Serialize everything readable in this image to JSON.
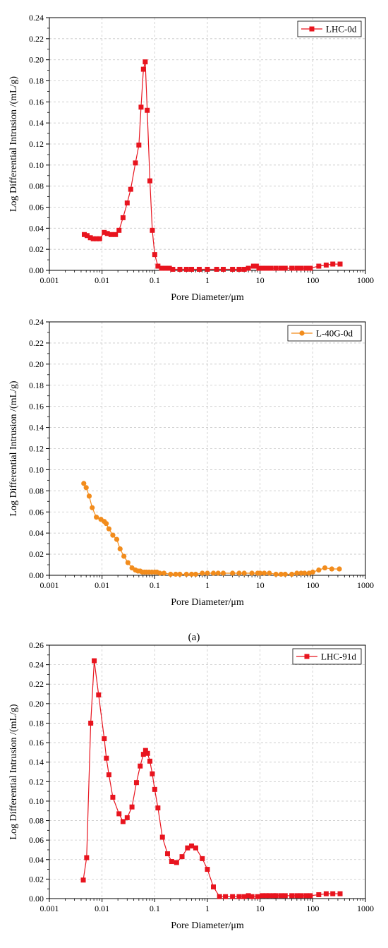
{
  "caption": "(a)",
  "chart_data": [
    {
      "type": "line",
      "xlabel": "Pore Diameter/μm",
      "ylabel": "Log Differential Intrusion /(mL/g)",
      "xscale": "log",
      "xlim": [
        0.001,
        1000
      ],
      "ylim": [
        0,
        0.24
      ],
      "xticks": [
        "0.001",
        "0.01",
        "0.1",
        "1",
        "10",
        "100",
        "1000"
      ],
      "yticks": [
        "0.00",
        "0.02",
        "0.04",
        "0.06",
        "0.08",
        "0.10",
        "0.12",
        "0.14",
        "0.16",
        "0.18",
        "0.20",
        "0.22",
        "0.24"
      ],
      "grid": true,
      "legend": "top-right",
      "series": [
        {
          "name": "LHC-0d",
          "color": "#e8141e",
          "marker": "square",
          "x": [
            0.0046,
            0.0052,
            0.006,
            0.0068,
            0.0078,
            0.009,
            0.011,
            0.0126,
            0.0148,
            0.018,
            0.021,
            0.025,
            0.03,
            0.035,
            0.043,
            0.05,
            0.055,
            0.061,
            0.066,
            0.072,
            0.081,
            0.09,
            0.1,
            0.115,
            0.135,
            0.16,
            0.19,
            0.22,
            0.3,
            0.4,
            0.5,
            0.7,
            1,
            1.5,
            2,
            3,
            4,
            5,
            6,
            7.5,
            8.5,
            9.5,
            11,
            13,
            16,
            20,
            25,
            30,
            40,
            50,
            60,
            75,
            90,
            130,
            180,
            240,
            330
          ],
          "y": [
            0.034,
            0.033,
            0.031,
            0.03,
            0.03,
            0.03,
            0.036,
            0.035,
            0.034,
            0.034,
            0.038,
            0.05,
            0.064,
            0.077,
            0.102,
            0.119,
            0.155,
            0.191,
            0.198,
            0.152,
            0.085,
            0.038,
            0.015,
            0.004,
            0.002,
            0.002,
            0.002,
            0.001,
            0.001,
            0.001,
            0.001,
            0.001,
            0.001,
            0.001,
            0.001,
            0.001,
            0.001,
            0.001,
            0.002,
            0.004,
            0.004,
            0.002,
            0.002,
            0.002,
            0.002,
            0.002,
            0.002,
            0.002,
            0.002,
            0.002,
            0.002,
            0.002,
            0.002,
            0.004,
            0.005,
            0.006,
            0.006
          ]
        }
      ]
    },
    {
      "type": "line",
      "xlabel": "Pore Diameter/μm",
      "ylabel": "Log Differential Intrusion /(mL/g)",
      "xscale": "log",
      "xlim": [
        0.001,
        1000
      ],
      "ylim": [
        0,
        0.24
      ],
      "xticks": [
        "0.001",
        "0.01",
        "0.1",
        "1",
        "10",
        "100",
        "1000"
      ],
      "yticks": [
        "0.00",
        "0.02",
        "0.04",
        "0.06",
        "0.08",
        "0.10",
        "0.12",
        "0.14",
        "0.16",
        "0.18",
        "0.20",
        "0.22",
        "0.24"
      ],
      "grid": true,
      "legend": "top-right",
      "series": [
        {
          "name": "L-40G-0d",
          "color": "#f28c1c",
          "marker": "circle",
          "x": [
            0.0045,
            0.005,
            0.0057,
            0.0065,
            0.0078,
            0.0095,
            0.011,
            0.012,
            0.0135,
            0.016,
            0.019,
            0.022,
            0.026,
            0.031,
            0.037,
            0.043,
            0.048,
            0.053,
            0.058,
            0.064,
            0.07,
            0.078,
            0.088,
            0.1,
            0.11,
            0.125,
            0.15,
            0.2,
            0.25,
            0.3,
            0.4,
            0.5,
            0.6,
            0.8,
            1,
            1.3,
            1.6,
            2,
            3,
            4,
            5,
            7,
            9,
            10,
            12,
            15,
            20,
            25,
            30,
            40,
            50,
            60,
            70,
            85,
            100,
            130,
            170,
            230,
            320
          ],
          "y": [
            0.087,
            0.083,
            0.075,
            0.064,
            0.055,
            0.053,
            0.051,
            0.049,
            0.044,
            0.038,
            0.034,
            0.025,
            0.018,
            0.012,
            0.007,
            0.005,
            0.004,
            0.004,
            0.003,
            0.003,
            0.003,
            0.003,
            0.003,
            0.003,
            0.003,
            0.002,
            0.002,
            0.001,
            0.001,
            0.001,
            0.001,
            0.001,
            0.001,
            0.002,
            0.002,
            0.002,
            0.002,
            0.002,
            0.002,
            0.002,
            0.002,
            0.002,
            0.002,
            0.002,
            0.002,
            0.002,
            0.001,
            0.001,
            0.001,
            0.001,
            0.002,
            0.002,
            0.002,
            0.002,
            0.003,
            0.005,
            0.007,
            0.006,
            0.006
          ]
        }
      ]
    },
    {
      "type": "line",
      "xlabel": "Pore Diameter/μm",
      "ylabel": "Log Differential Intrusion /(mL/g)",
      "xscale": "log",
      "xlim": [
        0.001,
        1000
      ],
      "ylim": [
        0,
        0.26
      ],
      "xticks": [
        "0.001",
        "0.01",
        "0.1",
        "1",
        "10",
        "100",
        "1000"
      ],
      "yticks": [
        "0.00",
        "0.02",
        "0.04",
        "0.06",
        "0.08",
        "0.10",
        "0.12",
        "0.14",
        "0.16",
        "0.18",
        "0.20",
        "0.22",
        "0.24",
        "0.26"
      ],
      "grid": true,
      "legend": "top-right",
      "series": [
        {
          "name": "LHC-91d",
          "color": "#e8141e",
          "marker": "square",
          "x": [
            0.0044,
            0.0051,
            0.0061,
            0.0071,
            0.0086,
            0.011,
            0.0121,
            0.0135,
            0.016,
            0.021,
            0.025,
            0.03,
            0.037,
            0.045,
            0.053,
            0.061,
            0.067,
            0.073,
            0.081,
            0.09,
            0.1,
            0.115,
            0.14,
            0.175,
            0.21,
            0.26,
            0.33,
            0.42,
            0.5,
            0.6,
            0.8,
            1,
            1.3,
            1.7,
            2.2,
            3,
            4,
            5,
            6,
            7,
            9,
            11,
            13,
            15,
            18,
            20,
            25,
            30,
            40,
            50,
            60,
            75,
            90,
            130,
            180,
            240,
            330
          ],
          "y": [
            0.019,
            0.042,
            0.18,
            0.244,
            0.209,
            0.164,
            0.144,
            0.127,
            0.104,
            0.087,
            0.079,
            0.083,
            0.094,
            0.119,
            0.136,
            0.148,
            0.152,
            0.149,
            0.141,
            0.128,
            0.112,
            0.093,
            0.063,
            0.046,
            0.038,
            0.037,
            0.043,
            0.052,
            0.054,
            0.052,
            0.041,
            0.03,
            0.012,
            0.002,
            0.002,
            0.002,
            0.002,
            0.002,
            0.003,
            0.002,
            0.002,
            0.003,
            0.003,
            0.003,
            0.003,
            0.003,
            0.003,
            0.003,
            0.003,
            0.003,
            0.003,
            0.003,
            0.003,
            0.004,
            0.005,
            0.005,
            0.005
          ]
        }
      ]
    }
  ]
}
